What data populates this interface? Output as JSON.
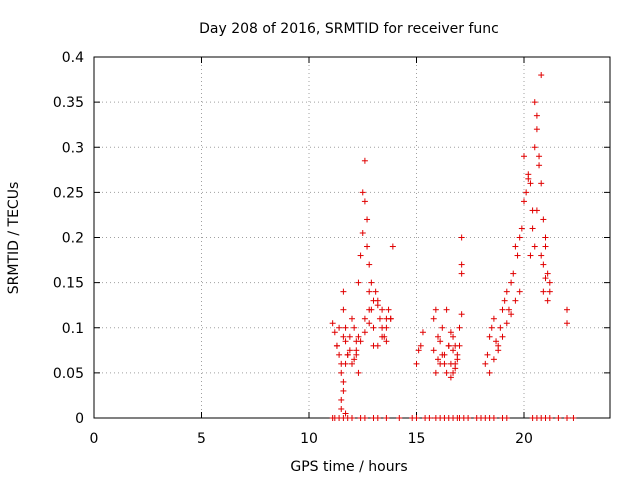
{
  "chart_data": {
    "type": "scatter",
    "title": "Day 208 of 2016, SRMTID for receiver func",
    "xlabel": "GPS time / hours",
    "ylabel": "SRMTID / TECUs",
    "xlim": [
      0,
      24
    ],
    "ylim": [
      0,
      0.4
    ],
    "xticks": [
      "0",
      "5",
      "10",
      "15",
      "20"
    ],
    "yticks": [
      "0",
      "0.05",
      "0.1",
      "0.15",
      "0.2",
      "0.25",
      "0.3",
      "0.35",
      "0.4"
    ],
    "grid": true,
    "marker": "+",
    "color": "#e00000",
    "series": [
      {
        "name": "SRMTID",
        "x": [
          11.1,
          11.2,
          11.3,
          11.4,
          11.5,
          11.5,
          11.6,
          11.6,
          11.7,
          11.7,
          11.8,
          11.9,
          12.0,
          12.1,
          12.2,
          12.3,
          12.4,
          12.5,
          12.5,
          12.6,
          12.6,
          12.7,
          12.7,
          12.8,
          12.8,
          12.9,
          12.9,
          13.0,
          13.1,
          13.2,
          13.3,
          13.4,
          13.5,
          13.6,
          13.7,
          13.8,
          13.9,
          11.3,
          11.5,
          11.7,
          11.9,
          12.1,
          12.3,
          12.6,
          12.8,
          13.0,
          13.2,
          13.4,
          13.6,
          11.4,
          11.6,
          11.8,
          12.0,
          12.2,
          12.4,
          12.6,
          12.8,
          13.0,
          13.2,
          13.4,
          13.6,
          13.8,
          11.5,
          11.6,
          11.6,
          11.7,
          12.2,
          12.3,
          15.0,
          15.1,
          15.2,
          15.3,
          15.8,
          15.9,
          16.0,
          16.1,
          16.2,
          16.3,
          16.4,
          16.5,
          16.6,
          16.7,
          16.8,
          16.9,
          17.0,
          17.1,
          15.8,
          16.0,
          16.2,
          16.4,
          16.6,
          16.8,
          17.0,
          15.9,
          16.1,
          16.3,
          16.5,
          16.7,
          16.9,
          17.1,
          17.1,
          17.1,
          16.6,
          16.7,
          16.8,
          18.2,
          18.3,
          18.4,
          18.5,
          18.6,
          18.7,
          18.8,
          18.9,
          19.0,
          19.1,
          19.2,
          19.3,
          19.4,
          19.5,
          19.6,
          19.7,
          19.8,
          19.9,
          18.4,
          18.6,
          18.8,
          19.0,
          19.2,
          19.4,
          19.6,
          19.8,
          20.0,
          20.1,
          20.2,
          20.3,
          20.4,
          20.5,
          20.6,
          20.7,
          20.8,
          20.9,
          21.0,
          21.1,
          21.2,
          20.0,
          20.2,
          20.4,
          20.6,
          20.8,
          21.0,
          20.3,
          20.5,
          20.7,
          20.9,
          21.1,
          20.5,
          20.6,
          20.8,
          20.9,
          21.0,
          21.2,
          22.0,
          22.0,
          11.1,
          11.2,
          11.4,
          11.6,
          11.8,
          12.0,
          12.4,
          12.6,
          13.0,
          13.2,
          13.6,
          14.2,
          14.8,
          15.0,
          15.4,
          15.6,
          15.9,
          16.1,
          16.3,
          16.5,
          16.7,
          16.9,
          17.0,
          17.2,
          17.4,
          17.8,
          18.0,
          18.2,
          18.4,
          18.6,
          19.0,
          19.2,
          20.4,
          20.6,
          20.8,
          21.0,
          21.2,
          21.6,
          22.0,
          22.3
        ],
        "y": [
          0.105,
          0.095,
          0.08,
          0.07,
          0.06,
          0.02,
          0.14,
          0.12,
          0.1,
          0.085,
          0.07,
          0.09,
          0.11,
          0.1,
          0.085,
          0.15,
          0.18,
          0.205,
          0.25,
          0.285,
          0.24,
          0.22,
          0.19,
          0.17,
          0.14,
          0.15,
          0.12,
          0.13,
          0.14,
          0.125,
          0.11,
          0.1,
          0.09,
          0.085,
          0.12,
          0.11,
          0.19,
          0.08,
          0.05,
          0.06,
          0.075,
          0.065,
          0.09,
          0.11,
          0.12,
          0.1,
          0.08,
          0.09,
          0.11,
          0.1,
          0.09,
          0.07,
          0.06,
          0.075,
          0.085,
          0.095,
          0.105,
          0.08,
          0.13,
          0.12,
          0.1,
          0.11,
          0.01,
          0.03,
          0.04,
          0.005,
          0.07,
          0.05,
          0.06,
          0.075,
          0.08,
          0.095,
          0.11,
          0.12,
          0.09,
          0.085,
          0.07,
          0.06,
          0.05,
          0.08,
          0.095,
          0.09,
          0.08,
          0.07,
          0.1,
          0.115,
          0.075,
          0.065,
          0.1,
          0.12,
          0.06,
          0.055,
          0.08,
          0.05,
          0.06,
          0.07,
          0.08,
          0.075,
          0.065,
          0.2,
          0.17,
          0.16,
          0.045,
          0.05,
          0.06,
          0.06,
          0.07,
          0.09,
          0.1,
          0.11,
          0.085,
          0.08,
          0.1,
          0.12,
          0.13,
          0.14,
          0.12,
          0.15,
          0.16,
          0.19,
          0.18,
          0.2,
          0.21,
          0.05,
          0.065,
          0.075,
          0.09,
          0.105,
          0.115,
          0.13,
          0.14,
          0.24,
          0.25,
          0.27,
          0.26,
          0.23,
          0.35,
          0.32,
          0.29,
          0.26,
          0.22,
          0.2,
          0.16,
          0.15,
          0.29,
          0.265,
          0.21,
          0.23,
          0.38,
          0.19,
          0.18,
          0.19,
          0.28,
          0.14,
          0.13,
          0.3,
          0.335,
          0.18,
          0.17,
          0.155,
          0.14,
          0.12,
          0.105,
          0,
          0,
          0,
          0,
          0,
          0,
          0,
          0,
          0,
          0,
          0,
          0,
          0,
          0,
          0,
          0,
          0,
          0,
          0,
          0,
          0,
          0,
          0,
          0,
          0,
          0,
          0,
          0,
          0,
          0,
          0,
          0,
          0,
          0,
          0,
          0,
          0,
          0,
          0,
          0
        ]
      }
    ]
  }
}
